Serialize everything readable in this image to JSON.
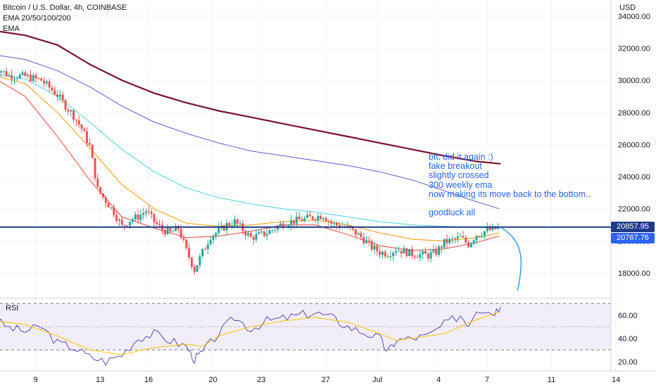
{
  "header": {
    "title": "Bitcoin / U.S. Dollar, 4h, COINBASE",
    "indicator": "EMA 20/50/100/200",
    "indicator2": "EMA"
  },
  "currency": "USD",
  "annotation": {
    "lines": [
      "btc did it again :)",
      "fake breakout",
      "slightly crossed",
      "300 weekly ema",
      "now making its move back to the bottom..",
      "",
      "goodluck all"
    ]
  },
  "price_tags": {
    "last": "20857.95",
    "ema": "20767.76"
  },
  "rsi": {
    "label": "RSI"
  },
  "colors": {
    "up": "#26a69a",
    "down": "#ef5350",
    "ema20": "#f44336",
    "ema50": "#ff9800",
    "ema100": "#4dd0e1",
    "ema200": "#5b5bd6",
    "ema300w": "#7b1030",
    "annotation": "#2962ff",
    "hline": "#1e3a8a",
    "rsi_line": "#5b4bb5",
    "rsi_ma": "#f7c600",
    "rsi_band": "#ede7f6"
  },
  "chart_data": [
    {
      "type": "candlestick",
      "title": "Bitcoin / U.S. Dollar, 4h, COINBASE",
      "ylabel": "USD",
      "ylim": [
        16600,
        35000
      ],
      "x_tick_labels": [
        "9",
        "13",
        "16",
        "20",
        "23",
        "27",
        "Jul",
        "4",
        "7",
        "11",
        "14"
      ],
      "y_tick_labels": [
        "18000.00",
        "20000.00",
        "22000.00",
        "24000.00",
        "26000.00",
        "28000.00",
        "30000.00",
        "32000.00",
        "34000.00"
      ],
      "close_path": [
        [
          6,
          30900
        ],
        [
          7,
          30300
        ],
        [
          8,
          30250
        ],
        [
          9,
          30000
        ],
        [
          10,
          29100
        ],
        [
          10.5,
          28400
        ],
        [
          11,
          27800
        ],
        [
          11.5,
          27000
        ],
        [
          12,
          25900
        ],
        [
          12.5,
          23200
        ],
        [
          13,
          22500
        ],
        [
          13.5,
          21800
        ],
        [
          14,
          20900
        ],
        [
          14.5,
          21300
        ],
        [
          15,
          21500
        ],
        [
          15.5,
          21900
        ],
        [
          16,
          21200
        ],
        [
          16.5,
          20700
        ],
        [
          17,
          20500
        ],
        [
          17.5,
          20800
        ],
        [
          18,
          19400
        ],
        [
          18.5,
          18200
        ],
        [
          19,
          19300
        ],
        [
          19.5,
          20300
        ],
        [
          20,
          20600
        ],
        [
          20.5,
          21000
        ],
        [
          21,
          21200
        ],
        [
          21.5,
          20700
        ],
        [
          22,
          20200
        ],
        [
          23,
          20500
        ],
        [
          24,
          21100
        ],
        [
          25,
          21300
        ],
        [
          26,
          21500
        ],
        [
          26.5,
          21600
        ],
        [
          27,
          21100
        ],
        [
          28,
          20800
        ],
        [
          28.5,
          20500
        ],
        [
          29,
          20100
        ],
        [
          29.5,
          19600
        ],
        [
          30,
          19300
        ],
        [
          30.5,
          19200
        ],
        [
          31,
          19500
        ],
        [
          32,
          19200
        ],
        [
          33,
          19100
        ],
        [
          33.5,
          19300
        ],
        [
          34,
          19900
        ],
        [
          35,
          20200
        ],
        [
          35.5,
          19800
        ],
        [
          36,
          20400
        ],
        [
          36.5,
          20600
        ],
        [
          37,
          20700
        ],
        [
          37.5,
          20860
        ]
      ],
      "series": [
        {
          "name": "EMA 20",
          "points": [
            [
              6,
              30200
            ],
            [
              8,
              29000
            ],
            [
              10,
              26500
            ],
            [
              12,
              23800
            ],
            [
              14,
              21500
            ],
            [
              16,
              20800
            ],
            [
              18,
              20200
            ],
            [
              20,
              20300
            ],
            [
              22,
              20600
            ],
            [
              24,
              21000
            ],
            [
              26,
              21000
            ],
            [
              28,
              20400
            ],
            [
              30,
              19700
            ],
            [
              32,
              19400
            ],
            [
              34,
              19500
            ],
            [
              36,
              19900
            ],
            [
              37.4,
              20300
            ]
          ]
        },
        {
          "name": "EMA 50",
          "points": [
            [
              6,
              30300
            ],
            [
              8,
              29800
            ],
            [
              10,
              28000
            ],
            [
              12,
              25800
            ],
            [
              14,
              23500
            ],
            [
              16,
              22000
            ],
            [
              18,
              21100
            ],
            [
              20,
              20900
            ],
            [
              22,
              21000
            ],
            [
              24,
              21200
            ],
            [
              26,
              21300
            ],
            [
              28,
              21000
            ],
            [
              30,
              20500
            ],
            [
              32,
              20100
            ],
            [
              34,
              20000
            ],
            [
              36,
              20200
            ],
            [
              37.4,
              20500
            ]
          ]
        },
        {
          "name": "EMA 100",
          "points": [
            [
              6,
              30400
            ],
            [
              8,
              30100
            ],
            [
              10,
              29000
            ],
            [
              12,
              27400
            ],
            [
              14,
              25700
            ],
            [
              16,
              24300
            ],
            [
              18,
              23300
            ],
            [
              20,
              22700
            ],
            [
              22,
              22300
            ],
            [
              24,
              22000
            ],
            [
              26,
              21800
            ],
            [
              28,
              21500
            ],
            [
              30,
              21200
            ],
            [
              32,
              21000
            ],
            [
              34,
              20900
            ],
            [
              36,
              20850
            ],
            [
              37.4,
              20800
            ]
          ]
        },
        {
          "name": "EMA 200",
          "points": [
            [
              6,
              31600
            ],
            [
              8,
              31300
            ],
            [
              10,
              30600
            ],
            [
              12,
              29600
            ],
            [
              14,
              28400
            ],
            [
              16,
              27400
            ],
            [
              18,
              26700
            ],
            [
              20,
              26100
            ],
            [
              22,
              25600
            ],
            [
              24,
              25300
            ],
            [
              26,
              25000
            ],
            [
              28,
              24700
            ],
            [
              30,
              24300
            ],
            [
              32,
              23800
            ],
            [
              33.5,
              23300
            ],
            [
              35.5,
              22600
            ],
            [
              37.4,
              22000
            ]
          ]
        },
        {
          "name": "EMA 300 weekly",
          "points": [
            [
              6,
              33100
            ],
            [
              8,
              32800
            ],
            [
              10,
              32200
            ],
            [
              12,
              31000
            ],
            [
              14,
              30000
            ],
            [
              16,
              29200
            ],
            [
              18,
              28600
            ],
            [
              20,
              28100
            ],
            [
              22,
              27700
            ],
            [
              24,
              27300
            ],
            [
              26,
              26900
            ],
            [
              28,
              26500
            ],
            [
              30,
              26100
            ],
            [
              32,
              25700
            ],
            [
              34,
              25300
            ],
            [
              36,
              24950
            ],
            [
              37.5,
              24800
            ]
          ]
        }
      ],
      "horizontal_line": 20860,
      "projection": [
        [
          37.5,
          20860
        ],
        [
          38.2,
          19800
        ],
        [
          38.5,
          18200
        ],
        [
          38.55,
          16900
        ]
      ]
    },
    {
      "type": "line",
      "title": "RSI",
      "ylim": [
        15,
        72
      ],
      "bands": [
        30,
        50,
        70
      ],
      "y_tick_labels": [
        "20.00",
        "40.00",
        "60.00"
      ],
      "series": [
        {
          "name": "RSI",
          "points": [
            [
              6,
              57
            ],
            [
              7,
              49
            ],
            [
              8,
              46
            ],
            [
              9,
              50
            ],
            [
              10,
              36
            ],
            [
              11,
              32
            ],
            [
              12,
              24
            ],
            [
              13,
              20
            ],
            [
              14,
              26
            ],
            [
              15,
              40
            ],
            [
              16,
              44
            ],
            [
              17,
              38
            ],
            [
              18,
              33
            ],
            [
              18.5,
              22
            ],
            [
              19,
              28
            ],
            [
              20,
              44
            ],
            [
              21,
              58
            ],
            [
              22,
              48
            ],
            [
              23,
              55
            ],
            [
              24,
              57
            ],
            [
              25,
              60
            ],
            [
              26,
              62
            ],
            [
              27,
              58
            ],
            [
              28,
              50
            ],
            [
              29,
              45
            ],
            [
              30,
              40
            ],
            [
              30.5,
              28
            ],
            [
              31,
              38
            ],
            [
              32,
              40
            ],
            [
              33,
              42
            ],
            [
              34,
              52
            ],
            [
              35,
              60
            ],
            [
              35.5,
              52
            ],
            [
              36,
              66
            ],
            [
              37,
              62
            ],
            [
              37.5,
              67
            ]
          ]
        },
        {
          "name": "RSI MA",
          "points": [
            [
              6,
              55
            ],
            [
              8,
              52
            ],
            [
              10,
              42
            ],
            [
              12,
              30
            ],
            [
              14,
              26
            ],
            [
              16,
              32
            ],
            [
              18,
              35
            ],
            [
              19,
              33
            ],
            [
              20,
              42
            ],
            [
              22,
              50
            ],
            [
              24,
              55
            ],
            [
              26,
              58
            ],
            [
              28,
              54
            ],
            [
              30,
              44
            ],
            [
              31,
              38
            ],
            [
              32,
              40
            ],
            [
              34,
              44
            ],
            [
              36,
              56
            ],
            [
              37.5,
              63
            ]
          ]
        }
      ]
    }
  ]
}
